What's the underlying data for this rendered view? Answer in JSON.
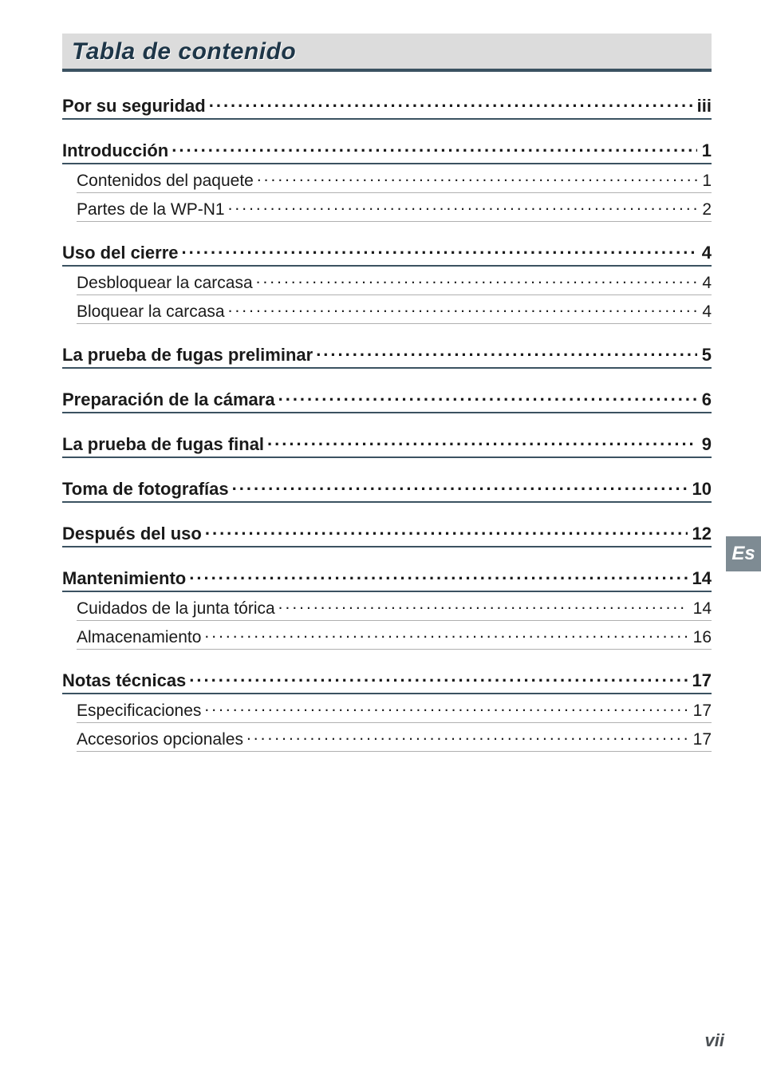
{
  "title": "Tabla de contenido",
  "side_tab": "Es",
  "page_number": "vii",
  "colors": {
    "title_bg": "#dcdcdc",
    "title_border": "#3b5261",
    "title_text": "#1e3648",
    "rule_main": "#3b5261",
    "rule_sub": "#b0b0b0",
    "side_tab_bg": "#7e8b93",
    "side_tab_text": "#ffffff",
    "page_number_color": "#4a4f53",
    "body_text": "#1a1a1a",
    "background": "#ffffff"
  },
  "toc": [
    {
      "level": 0,
      "label": "Por su seguridad",
      "page": "iii"
    },
    {
      "level": 0,
      "label": "Introducción",
      "page": "1"
    },
    {
      "level": 1,
      "label": "Contenidos del paquete",
      "page": "1"
    },
    {
      "level": 1,
      "label": "Partes de la WP-N1",
      "page": "2"
    },
    {
      "level": 0,
      "label": "Uso del cierre",
      "page": "4"
    },
    {
      "level": 1,
      "label": "Desbloquear la carcasa",
      "page": "4"
    },
    {
      "level": 1,
      "label": "Bloquear la carcasa",
      "page": "4"
    },
    {
      "level": 0,
      "label": "La prueba de fugas preliminar",
      "page": "5"
    },
    {
      "level": 0,
      "label": "Preparación de la cámara",
      "page": "6"
    },
    {
      "level": 0,
      "label": "La prueba de fugas final",
      "page": "9"
    },
    {
      "level": 0,
      "label": "Toma de fotografías",
      "page": "10"
    },
    {
      "level": 0,
      "label": "Después del uso",
      "page": "12"
    },
    {
      "level": 0,
      "label": "Mantenimiento",
      "page": "14"
    },
    {
      "level": 1,
      "label": "Cuidados de la junta tórica",
      "page": "14"
    },
    {
      "level": 1,
      "label": "Almacenamiento",
      "page": "16"
    },
    {
      "level": 0,
      "label": "Notas técnicas",
      "page": "17"
    },
    {
      "level": 1,
      "label": "Especificaciones",
      "page": "17"
    },
    {
      "level": 1,
      "label": "Accesorios opcionales",
      "page": "17"
    }
  ]
}
